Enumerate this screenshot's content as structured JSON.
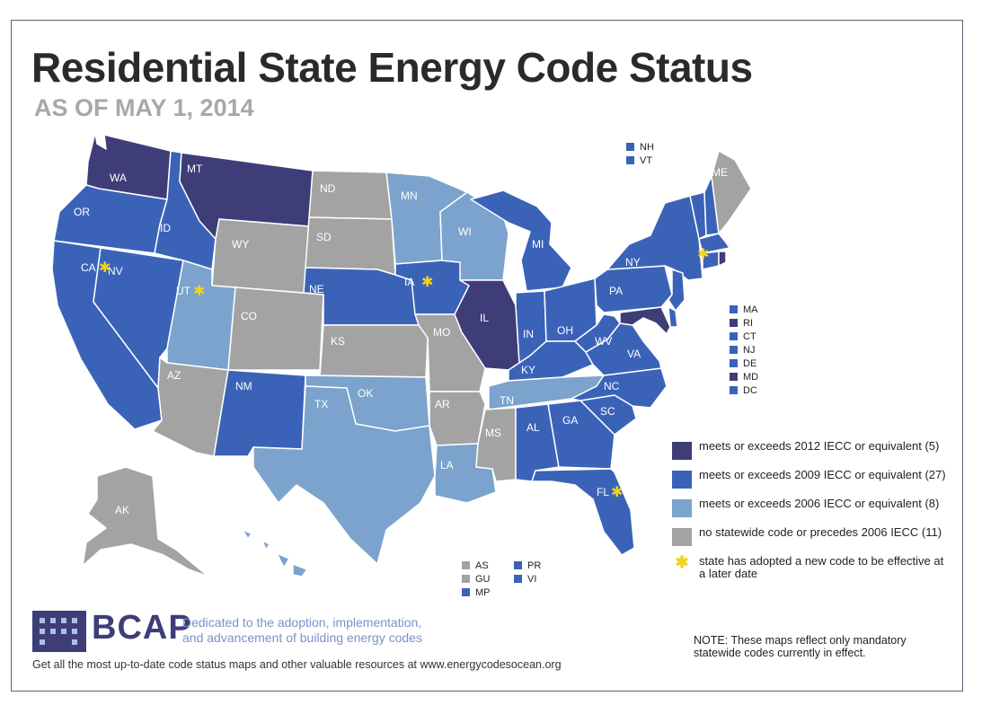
{
  "title": "Residential State Energy Code Status",
  "subtitle": "AS OF MAY 1, 2014",
  "colors": {
    "iecc2012": "#3e3d78",
    "iecc2009": "#3a63b8",
    "iecc2006": "#7ba3cd",
    "none": "#a3a3a3",
    "star": "#f2d21b"
  },
  "states": {
    "WA": "WA",
    "OR": "OR",
    "CA": "CA",
    "NV": "NV",
    "ID": "ID",
    "MT": "MT",
    "WY": "WY",
    "UT": "UT",
    "CO": "CO",
    "AZ": "AZ",
    "NM": "NM",
    "ND": "ND",
    "SD": "SD",
    "NE": "NE",
    "KS": "KS",
    "OK": "OK",
    "TX": "TX",
    "MN": "MN",
    "IA": "IA",
    "MO": "MO",
    "AR": "AR",
    "LA": "LA",
    "WI": "WI",
    "IL": "IL",
    "MI": "MI",
    "IN": "IN",
    "OH": "OH",
    "KY": "KY",
    "TN": "TN",
    "MS": "MS",
    "AL": "AL",
    "GA": "GA",
    "FL": "FL",
    "SC": "SC",
    "NC": "NC",
    "VA": "VA",
    "WV": "WV",
    "PA": "PA",
    "NY": "NY",
    "ME": "ME",
    "AK": "AK",
    "HI": "HI"
  },
  "ne_top": [
    {
      "label": "NH",
      "status": "iecc2009"
    },
    {
      "label": "VT",
      "status": "iecc2009"
    }
  ],
  "ne_side": [
    {
      "label": "MA",
      "status": "iecc2009"
    },
    {
      "label": "RI",
      "status": "iecc2012"
    },
    {
      "label": "CT",
      "status": "iecc2009"
    },
    {
      "label": "NJ",
      "status": "iecc2009"
    },
    {
      "label": "DE",
      "status": "iecc2009"
    },
    {
      "label": "MD",
      "status": "iecc2012"
    },
    {
      "label": "DC",
      "status": "iecc2009"
    }
  ],
  "territories": [
    {
      "label": "AS",
      "status": "none"
    },
    {
      "label": "GU",
      "status": "none"
    },
    {
      "label": "MP",
      "status": "iecc2009"
    },
    {
      "label": "PR",
      "status": "iecc2009"
    },
    {
      "label": "VI",
      "status": "iecc2009"
    }
  ],
  "legend": [
    {
      "status": "iecc2012",
      "text": "meets or exceeds 2012 IECC or equivalent (5)"
    },
    {
      "status": "iecc2009",
      "text": "meets or exceeds 2009 IECC or equivalent (27)"
    },
    {
      "status": "iecc2006",
      "text": "meets or exceeds 2006 IECC or equivalent (8)"
    },
    {
      "status": "none",
      "text": "no statewide code or precedes 2006 IECC (11)"
    }
  ],
  "legend_star": "state has adopted a new code to be effective at a later date",
  "brand": {
    "name": "BCAP",
    "tagline1": "Dedicated to the adoption, implementation,",
    "tagline2": "and advancement of building energy codes"
  },
  "footer": "Get all the most up-to-date code status maps and other valuable resources at www.energycodesocean.org",
  "note": "NOTE: These maps reflect only mandatory statewide codes currently in effect."
}
